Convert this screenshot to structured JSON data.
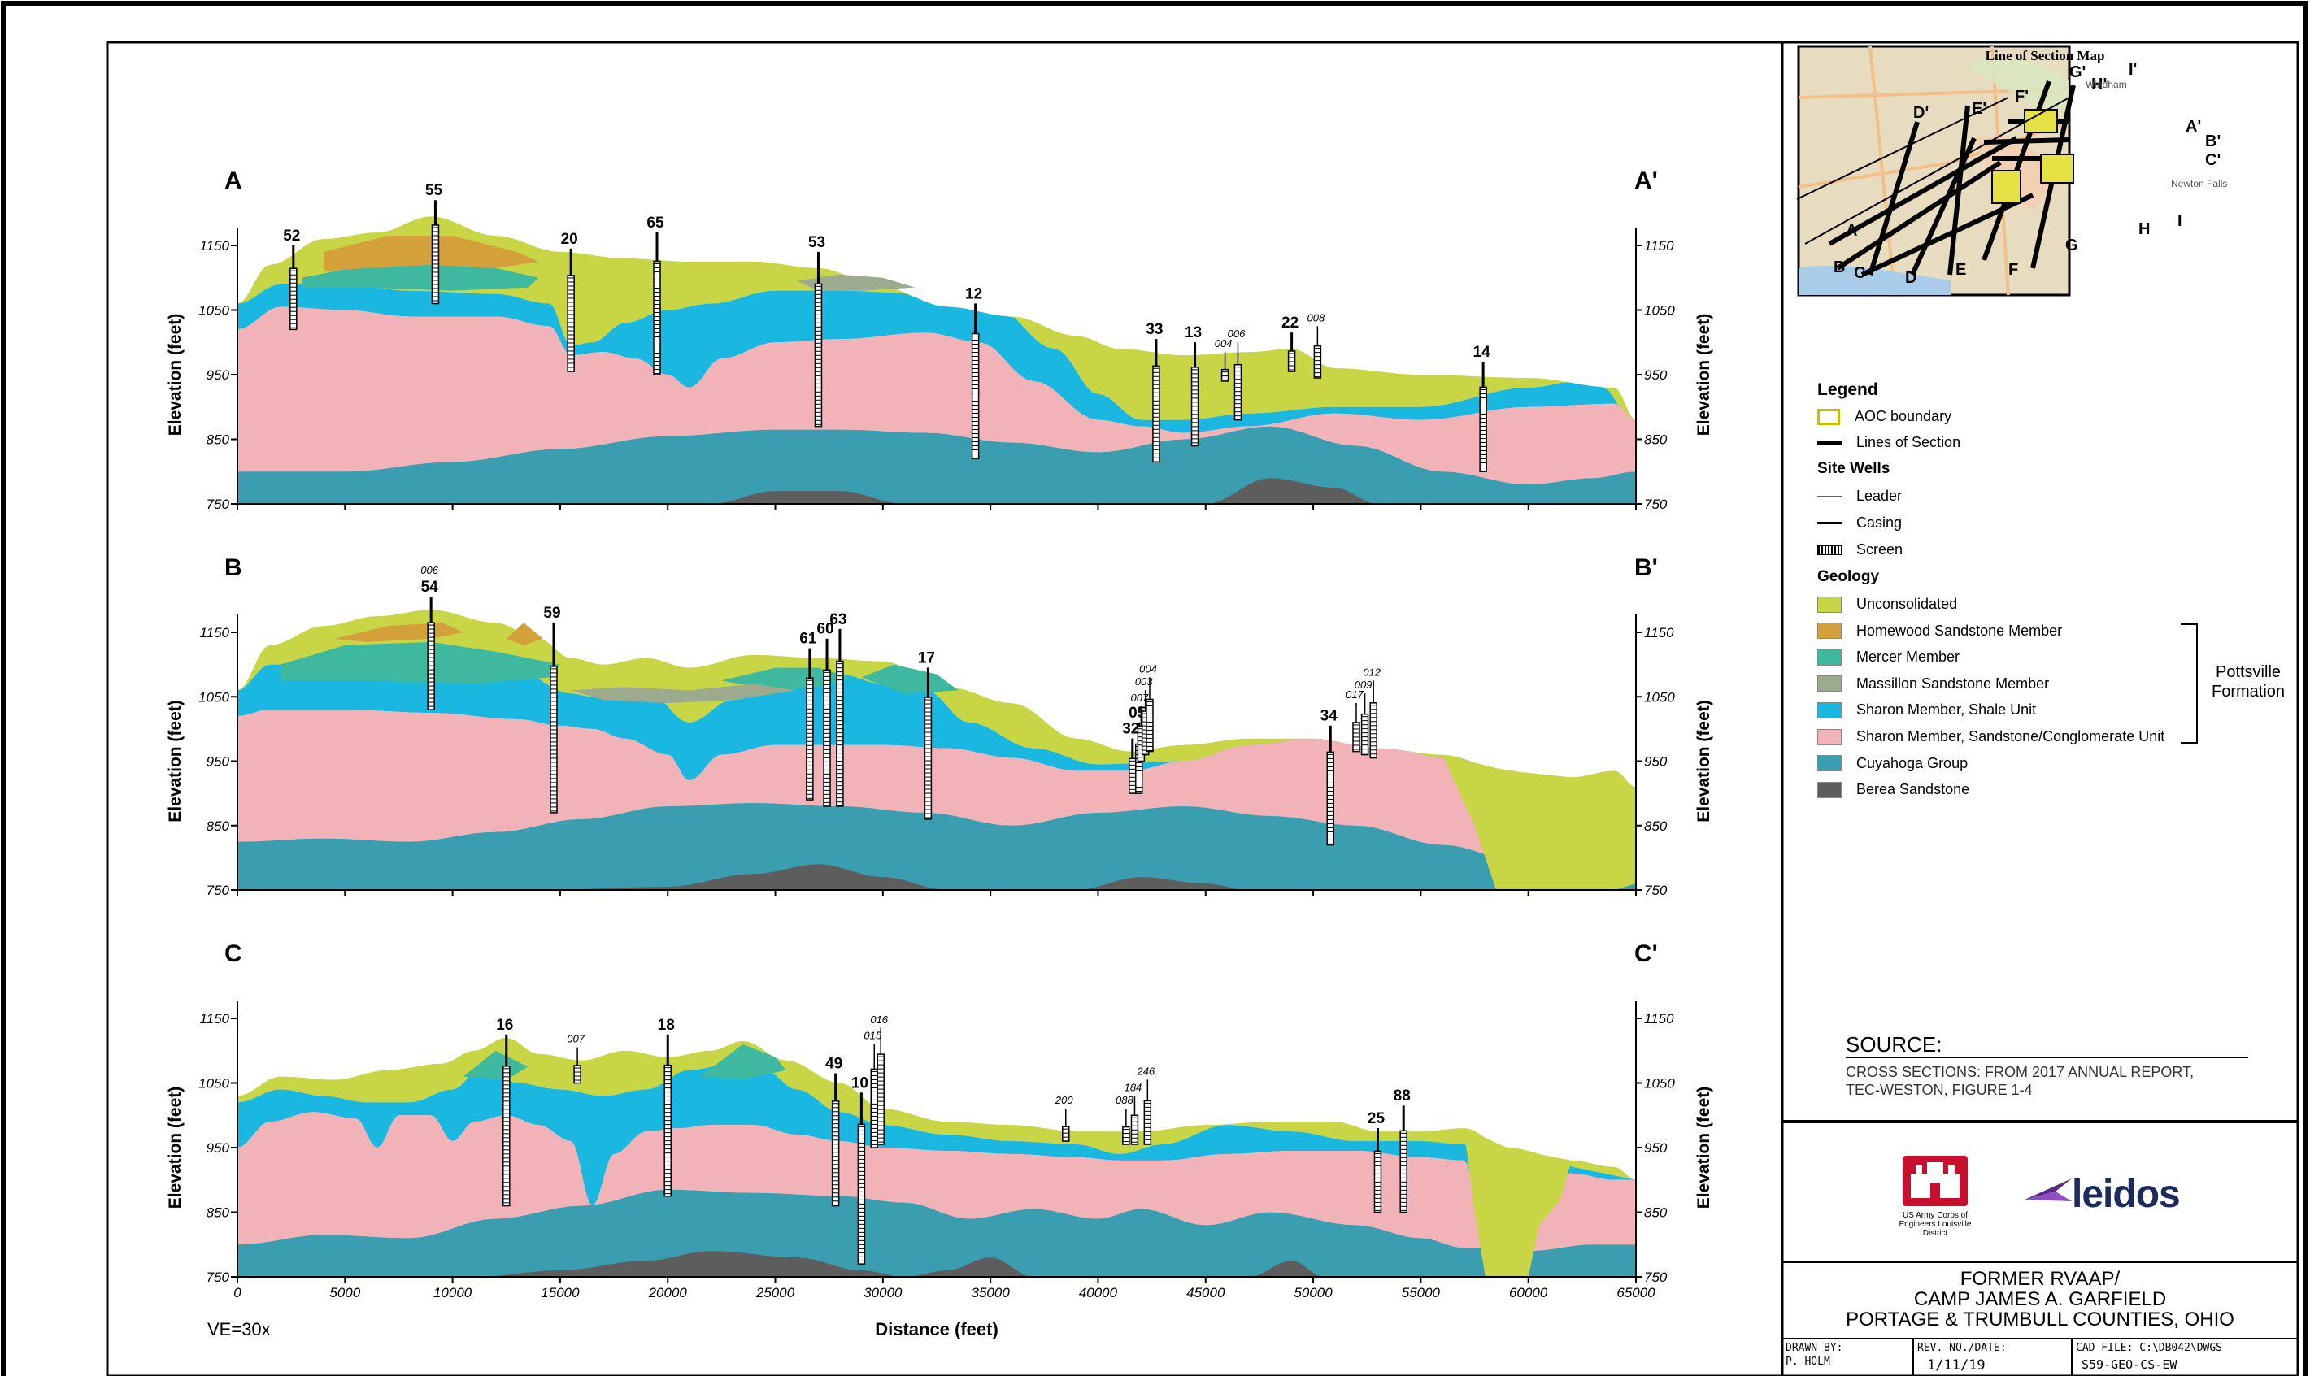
{
  "sections": [
    {
      "id": "A",
      "start_label": "A",
      "end_label": "A'",
      "wells": [
        {
          "label": "52",
          "x": 2600,
          "top": 1125,
          "bot": 1020,
          "casing": true
        },
        {
          "label": "55",
          "x": 9200,
          "top": 1195,
          "bot": 1060
        },
        {
          "label": "20",
          "x": 15500,
          "top": 1120,
          "bot": 955
        },
        {
          "label": "65",
          "x": 19500,
          "top": 1145,
          "bot": 950
        },
        {
          "label": "53",
          "x": 27000,
          "top": 1115,
          "bot": 870
        },
        {
          "label": "12",
          "x": 34300,
          "top": 1035,
          "bot": 820
        },
        {
          "label": "33",
          "x": 42700,
          "top": 980,
          "bot": 815
        },
        {
          "label": "13",
          "x": 44500,
          "top": 975,
          "bot": 840
        },
        {
          "label": "004",
          "x": 45900,
          "top": 960,
          "bot": 940,
          "small": true
        },
        {
          "label": "006",
          "x": 46500,
          "top": 975,
          "bot": 880,
          "small": true
        },
        {
          "label": "22",
          "x": 49000,
          "top": 990,
          "bot": 955
        },
        {
          "label": "008",
          "x": 50200,
          "top": 1000,
          "bot": 945,
          "small": true
        },
        {
          "label": "14",
          "x": 57900,
          "top": 945,
          "bot": 800
        }
      ]
    },
    {
      "id": "B",
      "start_label": "B",
      "end_label": "B'",
      "wells": [
        {
          "label": "54",
          "sublabel": "006",
          "x": 9000,
          "top": 1180,
          "bot": 1030
        },
        {
          "label": "59",
          "x": 14700,
          "top": 1140,
          "bot": 870
        },
        {
          "label": "61",
          "x": 26600,
          "top": 1100,
          "bot": 890
        },
        {
          "label": "60",
          "x": 27400,
          "top": 1115,
          "bot": 880
        },
        {
          "label": "63",
          "x": 28000,
          "top": 1130,
          "bot": 880
        },
        {
          "label": "17",
          "x": 32100,
          "top": 1070,
          "bot": 860
        },
        {
          "label": "32",
          "x": 41600,
          "top": 960,
          "bot": 900
        },
        {
          "label": "05",
          "x": 41900,
          "top": 985,
          "bot": 900
        },
        {
          "label": "007",
          "x": 42000,
          "top": 1010,
          "bot": 950,
          "small": true
        },
        {
          "label": "003",
          "x": 42200,
          "top": 1035,
          "bot": 960,
          "small": true
        },
        {
          "label": "004",
          "x": 42400,
          "top": 1055,
          "bot": 965,
          "small": true
        },
        {
          "label": "34",
          "x": 50800,
          "top": 980,
          "bot": 820
        },
        {
          "label": "017",
          "x": 52000,
          "top": 1015,
          "bot": 965,
          "small": true
        },
        {
          "label": "009",
          "x": 52400,
          "top": 1030,
          "bot": 960,
          "small": true
        },
        {
          "label": "012",
          "x": 52800,
          "top": 1050,
          "bot": 955,
          "small": true
        }
      ]
    },
    {
      "id": "C",
      "start_label": "C",
      "end_label": "C'",
      "wells": [
        {
          "label": "16",
          "x": 12500,
          "top": 1100,
          "bot": 860
        },
        {
          "label": "007",
          "x": 15800,
          "top": 1080,
          "bot": 1050,
          "small": true
        },
        {
          "label": "18",
          "x": 20000,
          "top": 1100,
          "bot": 875
        },
        {
          "label": "49",
          "x": 27800,
          "top": 1040,
          "bot": 860
        },
        {
          "label": "10",
          "x": 29000,
          "top": 1010,
          "bot": 770
        },
        {
          "label": "015",
          "x": 29600,
          "top": 1085,
          "bot": 950,
          "small": true
        },
        {
          "label": "016",
          "x": 29900,
          "top": 1110,
          "bot": 955,
          "small": true
        },
        {
          "label": "200",
          "x": 38500,
          "top": 985,
          "bot": 960,
          "small": true
        },
        {
          "label": "088",
          "x": 41300,
          "top": 985,
          "bot": 955,
          "small": true
        },
        {
          "label": "184",
          "x": 41700,
          "top": 1005,
          "bot": 955,
          "small": true
        },
        {
          "label": "246",
          "x": 42300,
          "top": 1030,
          "bot": 955,
          "small": true
        },
        {
          "label": "25",
          "x": 53000,
          "top": 955,
          "bot": 850
        },
        {
          "label": "88",
          "x": 54200,
          "top": 990,
          "bot": 850
        }
      ]
    }
  ],
  "axes": {
    "y_ticks": [
      "750",
      "850",
      "950",
      "1050",
      "1150"
    ],
    "y_label": "Elevation (feet)",
    "x_ticks": [
      "0",
      "5000",
      "10000",
      "15000",
      "20000",
      "25000",
      "30000",
      "35000",
      "40000",
      "45000",
      "50000",
      "55000",
      "60000",
      "65000"
    ],
    "x_label": "Distance (feet)",
    "ve": "VE=30x",
    "x_range": [
      0,
      65000
    ],
    "y_range": [
      750,
      1150
    ]
  },
  "map": {
    "title": "Line of Section Map",
    "line_labels": [
      "A",
      "B",
      "C",
      "D",
      "D'",
      "E",
      "E'",
      "F",
      "F'",
      "G",
      "G'",
      "H",
      "H'",
      "I",
      "I'",
      "A'",
      "B'",
      "C'"
    ],
    "place_labels": [
      "Newton Falls",
      "Windham"
    ]
  },
  "legend": {
    "title": "Legend",
    "aoc": "AOC boundary",
    "lines": "Lines of Section",
    "site_wells": "Site Wells",
    "leader": "Leader",
    "casing": "Casing",
    "screen": "Screen",
    "geology": "Geology",
    "units": [
      {
        "name": "Unconsolidated",
        "color": "#c8d645"
      },
      {
        "name": "Homewood Sandstone Member",
        "color": "#d4a03a"
      },
      {
        "name": "Mercer Member",
        "color": "#3fb8a0"
      },
      {
        "name": "Massillon Sandstone Member",
        "color": "#9caa8e"
      },
      {
        "name": "Sharon Member, Shale Unit",
        "color": "#1ab8e0"
      },
      {
        "name": "Sharon Member, Sandstone/Conglomerate Unit",
        "color": "#f2b3b8"
      },
      {
        "name": "Cuyahoga Group",
        "color": "#3a9eb0"
      },
      {
        "name": "Berea Sandstone",
        "color": "#5d5d5d"
      }
    ],
    "formation": "Pottsville Formation"
  },
  "source": {
    "heading": "SOURCE:",
    "text": "CROSS SECTIONS: FROM  2017 ANNUAL REPORT, TEC-WESTON, FIGURE 1-4"
  },
  "title_block": {
    "usace": "US Army Corps of Engineers Louisville District",
    "leidos": "leidos",
    "line1": "FORMER RVAAP/",
    "line2": "CAMP JAMES A. GARFIELD",
    "line3": "PORTAGE & TRUMBULL COUNTIES, OHIO",
    "drawn_by_label": "DRAWN BY:",
    "drawn_by": "P. HOLM",
    "rev_label": "REV. NO./DATE:",
    "rev": "1/11/19",
    "cad_label": "CAD FILE: C:\\DB042\\DWGS",
    "cad": "S59-GEO-CS-EW"
  }
}
